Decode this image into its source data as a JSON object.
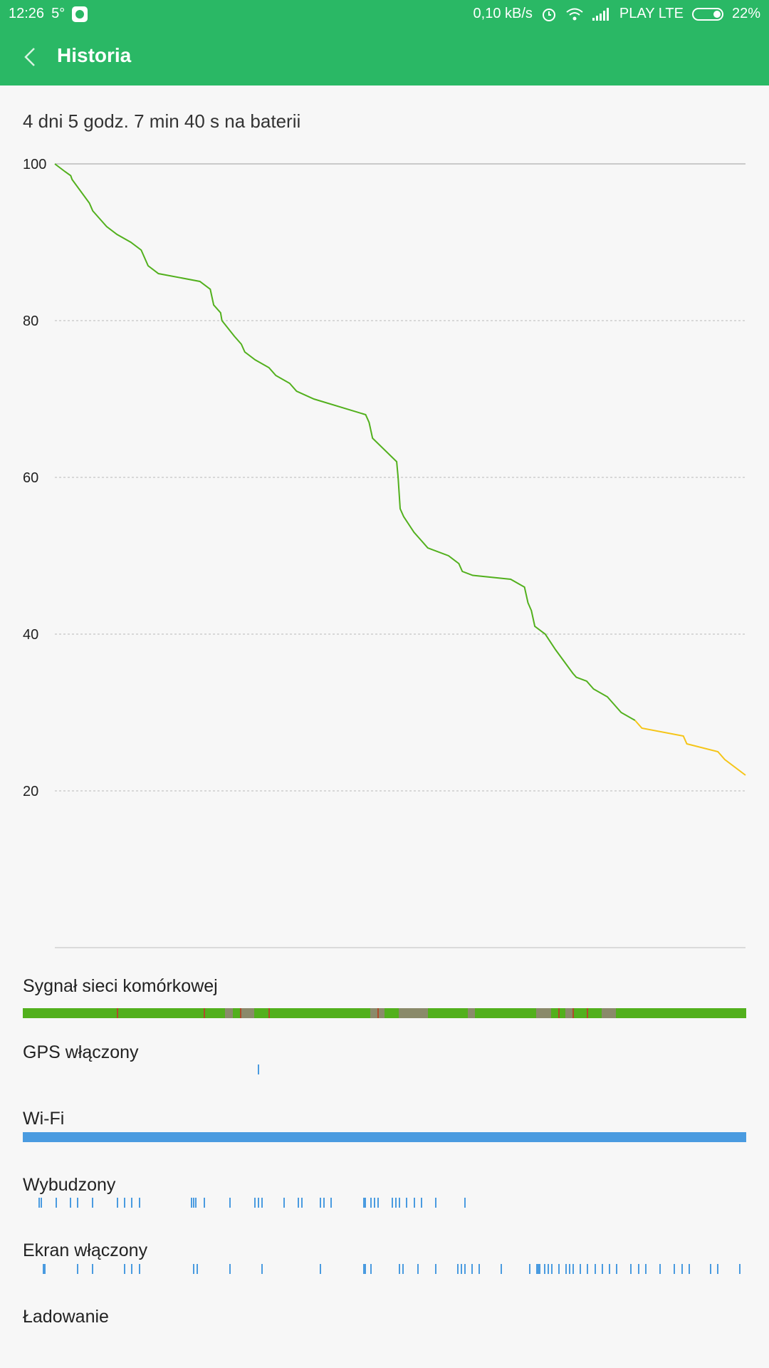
{
  "status_bar": {
    "time": "12:26",
    "temperature": "5°",
    "speed": "0,10 kB/s",
    "carrier": "PLAY LTE",
    "battery": "22%",
    "icons": [
      "whatsapp-icon",
      "alarm-icon",
      "wifi-icon",
      "signal-icon",
      "battery-icon"
    ]
  },
  "app_bar": {
    "title": "Historia",
    "back_icon": "chevron-left-icon",
    "color": "#2ab865"
  },
  "summary": {
    "duration": "4 dni 5 godz. 7 min 40 s na baterii"
  },
  "chart_data": {
    "type": "line",
    "title": "",
    "xlabel": "",
    "ylabel": "",
    "ylim": [
      0,
      100
    ],
    "y_ticks": [
      20,
      40,
      60,
      80,
      100
    ],
    "x": [
      0,
      0.015,
      0.023,
      0.025,
      0.05,
      0.055,
      0.07,
      0.075,
      0.09,
      0.11,
      0.125,
      0.135,
      0.15,
      0.21,
      0.225,
      0.23,
      0.24,
      0.242,
      0.26,
      0.27,
      0.275,
      0.29,
      0.31,
      0.32,
      0.34,
      0.35,
      0.375,
      0.45,
      0.455,
      0.46,
      0.495,
      0.497,
      0.5,
      0.505,
      0.52,
      0.53,
      0.54,
      0.57,
      0.585,
      0.59,
      0.605,
      0.66,
      0.68,
      0.685,
      0.69,
      0.695,
      0.71,
      0.725,
      0.75,
      0.755,
      0.77,
      0.78,
      0.8,
      0.82,
      0.84,
      0.85,
      0.91,
      0.915,
      0.96,
      0.97,
      1.0
    ],
    "series": [
      {
        "values": [
          100,
          99,
          98.5,
          98,
          95,
          94,
          92.5,
          92,
          91,
          90,
          89,
          87,
          86,
          85,
          84,
          82,
          81,
          80,
          78,
          77,
          76,
          75,
          74,
          73,
          72,
          71,
          70,
          68,
          67,
          65,
          62,
          60,
          56,
          55,
          53,
          52,
          51,
          50,
          49,
          48,
          47.5,
          47,
          46,
          44,
          43,
          41,
          40,
          38,
          35,
          34.5,
          34,
          33,
          32,
          30,
          29,
          null,
          null,
          null,
          null,
          null,
          null
        ],
        "color": "#52b01d"
      },
      {
        "values": [
          null,
          null,
          null,
          null,
          null,
          null,
          null,
          null,
          null,
          null,
          null,
          null,
          null,
          null,
          null,
          null,
          null,
          null,
          null,
          null,
          null,
          null,
          null,
          null,
          null,
          null,
          null,
          null,
          null,
          null,
          null,
          null,
          null,
          null,
          null,
          null,
          null,
          null,
          null,
          null,
          null,
          null,
          null,
          null,
          null,
          null,
          null,
          null,
          null,
          null,
          null,
          null,
          null,
          null,
          29,
          28,
          27,
          26,
          25,
          24,
          22
        ],
        "color": "#f5c518"
      }
    ]
  },
  "sections": {
    "signal": {
      "label": "Sygnał sieci komórkowej",
      "base_color": "#52b01d",
      "weak_color": "#8a8a6a",
      "bad_color": "#b04a2a",
      "weak_ranges": [
        [
          0.28,
          0.29
        ],
        [
          0.3,
          0.32
        ],
        [
          0.48,
          0.5
        ],
        [
          0.52,
          0.56
        ],
        [
          0.615,
          0.625
        ],
        [
          0.71,
          0.73
        ],
        [
          0.75,
          0.76
        ],
        [
          0.8,
          0.82
        ]
      ],
      "bad_marks": [
        0.13,
        0.25,
        0.3,
        0.34,
        0.49,
        0.74,
        0.76,
        0.78
      ]
    },
    "gps": {
      "label": "GPS włączony",
      "color": "#4a9be0",
      "marks": [
        0.325
      ]
    },
    "wifi": {
      "label": "Wi-Fi",
      "color": "#4a9be0",
      "level": 1.0
    },
    "awake": {
      "label": "Wybudzony",
      "color": "#4a9be0",
      "marks": [
        0.022,
        0.025,
        0.045,
        0.065,
        0.075,
        0.095,
        0.13,
        0.14,
        0.15,
        0.16,
        0.232,
        0.235,
        0.238,
        0.25,
        0.285,
        0.32,
        0.325,
        0.33,
        0.36,
        0.38,
        0.385,
        0.41,
        0.415,
        0.425,
        0.47,
        0.472,
        0.48,
        0.485,
        0.49,
        0.51,
        0.515,
        0.52,
        0.53,
        0.54,
        0.55,
        0.57,
        0.61
      ]
    },
    "screen_on": {
      "label": "Ekran włączony",
      "color": "#4a9be0",
      "marks": [
        0.028,
        0.03,
        0.075,
        0.095,
        0.14,
        0.15,
        0.16,
        0.235,
        0.24,
        0.285,
        0.33,
        0.41,
        0.47,
        0.472,
        0.48,
        0.52,
        0.525,
        0.545,
        0.57,
        0.6,
        0.605,
        0.61,
        0.62,
        0.63,
        0.66,
        0.7,
        0.71,
        0.712,
        0.714,
        0.72,
        0.725,
        0.73,
        0.74,
        0.75,
        0.755,
        0.76,
        0.77,
        0.78,
        0.79,
        0.8,
        0.81,
        0.82,
        0.84,
        0.85,
        0.86,
        0.88,
        0.9,
        0.91,
        0.92,
        0.95,
        0.96,
        0.99
      ]
    },
    "charging": {
      "label": "Ładowanie",
      "color": "#4a9be0",
      "marks": []
    }
  }
}
